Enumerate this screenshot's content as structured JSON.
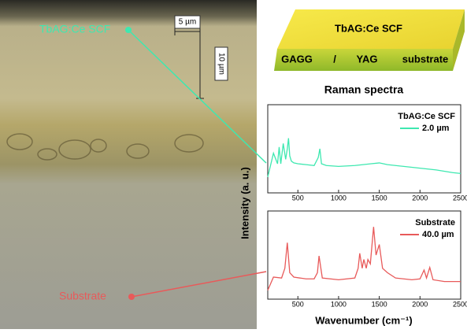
{
  "image": {
    "film_label": "TbAG:Ce SCF",
    "substrate_label": "Substrate",
    "scale_bar_1": "5 µm",
    "scale_bar_2": "10 µm"
  },
  "schematic": {
    "top_label": "TbAG:Ce SCF",
    "front_labels": [
      "GAGG",
      "/",
      "YAG",
      "substrate"
    ],
    "caption": "Raman spectra"
  },
  "axis_labels": {
    "y": "Intensity (a. u.)",
    "x": "Wavenumber (cm⁻¹)"
  },
  "chart_data": [
    {
      "type": "line",
      "legend_title": "TbAG:Ce SCF",
      "xlim": [
        130,
        2500
      ],
      "xticks": [
        500,
        1000,
        1500,
        2000,
        2500
      ],
      "ylim": [
        0,
        1
      ],
      "x": [
        130,
        200,
        250,
        270,
        290,
        320,
        350,
        370,
        385,
        400,
        420,
        450,
        500,
        600,
        700,
        750,
        770,
        790,
        850,
        1000,
        1200,
        1400,
        1500,
        1600,
        1800,
        2000,
        2200,
        2400,
        2500
      ],
      "series": [
        {
          "name": "2.0 µm",
          "color": "#3ee8b0",
          "values": [
            0.18,
            0.45,
            0.33,
            0.52,
            0.33,
            0.56,
            0.38,
            0.5,
            0.62,
            0.42,
            0.36,
            0.34,
            0.33,
            0.32,
            0.31,
            0.4,
            0.5,
            0.33,
            0.31,
            0.3,
            0.31,
            0.33,
            0.34,
            0.32,
            0.3,
            0.28,
            0.26,
            0.23,
            0.22
          ]
        }
      ]
    },
    {
      "type": "line",
      "legend_title": "Substrate",
      "xlim": [
        130,
        2500
      ],
      "xticks": [
        500,
        1000,
        1500,
        2000,
        2500
      ],
      "ylim": [
        0,
        1
      ],
      "x": [
        130,
        200,
        300,
        340,
        370,
        400,
        450,
        600,
        700,
        740,
        760,
        800,
        1000,
        1200,
        1240,
        1260,
        1290,
        1310,
        1340,
        1360,
        1390,
        1430,
        1460,
        1500,
        1540,
        1600,
        1700,
        1900,
        2000,
        2050,
        2080,
        2120,
        2160,
        2300,
        2500
      ],
      "series": [
        {
          "name": "40.0 µm",
          "color": "#e85a5a",
          "values": [
            0.1,
            0.25,
            0.24,
            0.35,
            0.64,
            0.3,
            0.25,
            0.23,
            0.23,
            0.3,
            0.49,
            0.24,
            0.22,
            0.24,
            0.35,
            0.52,
            0.35,
            0.45,
            0.35,
            0.45,
            0.4,
            0.82,
            0.5,
            0.62,
            0.35,
            0.3,
            0.24,
            0.22,
            0.23,
            0.33,
            0.24,
            0.36,
            0.22,
            0.2,
            0.2
          ]
        }
      ]
    }
  ]
}
